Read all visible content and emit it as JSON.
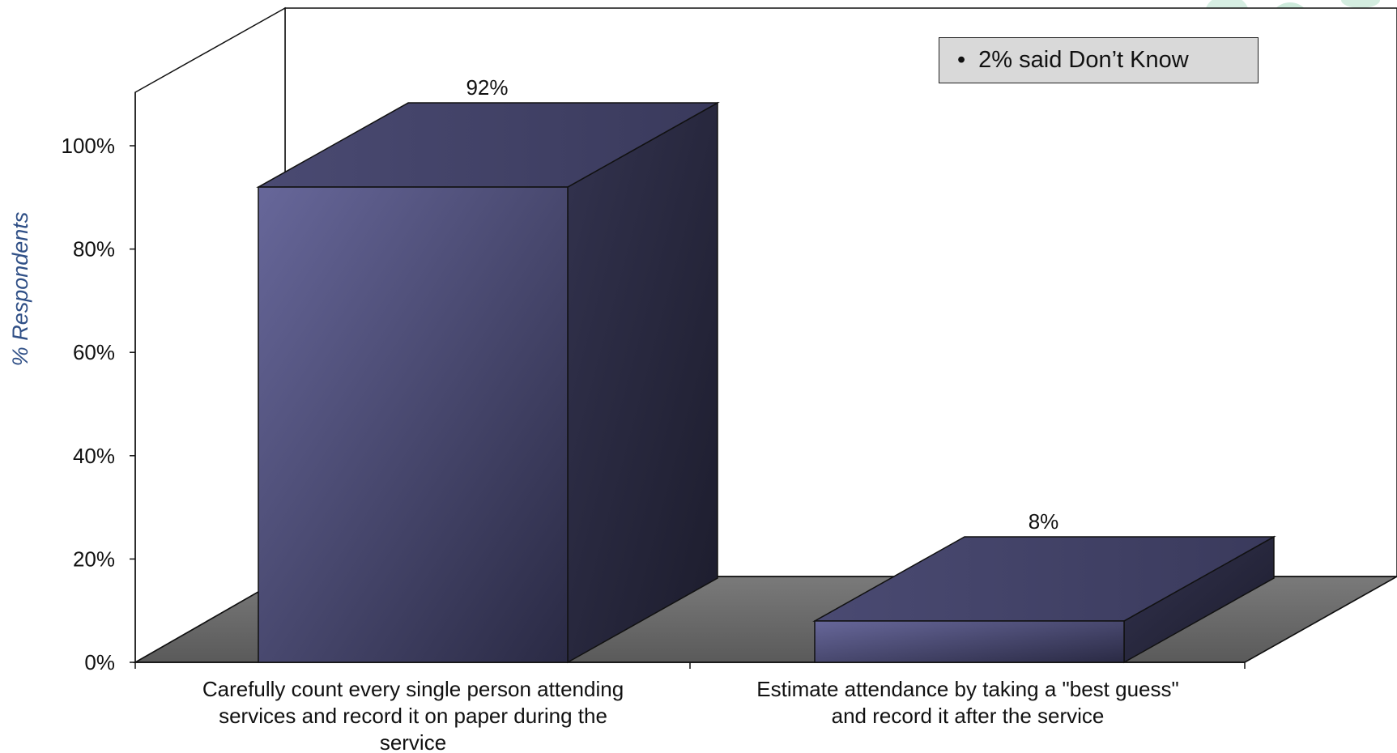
{
  "chart_data": {
    "type": "bar",
    "ylabel": "% Respondents",
    "ylim": [
      0,
      100
    ],
    "y_ticks": [
      "0%",
      "20%",
      "40%",
      "60%",
      "80%",
      "100%"
    ],
    "categories": [
      [
        "Carefully count every single person attending",
        "services and record it on paper during the",
        "service"
      ],
      [
        "Estimate attendance by taking a \"best guess\"",
        "and record it after the service"
      ]
    ],
    "values": [
      92,
      8
    ],
    "data_labels": [
      "92%",
      "8%"
    ],
    "annotation": "2% said Don’t Know",
    "bar_color": "#5b5b8c",
    "floor_color": "#7f7f7f",
    "grid": false,
    "legend": "none"
  }
}
